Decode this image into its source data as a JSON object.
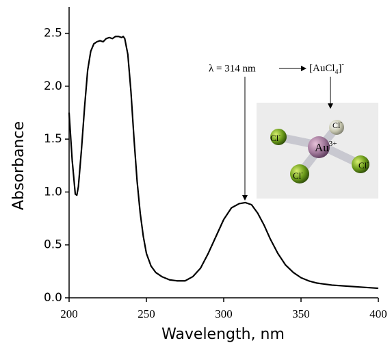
{
  "chart_data": {
    "type": "line",
    "xlabel": "Wavelength, nm",
    "ylabel": "Absorbance",
    "x": [
      200,
      202,
      204,
      205,
      206,
      208,
      210,
      212,
      214,
      216,
      218,
      220,
      222,
      224,
      226,
      228,
      230,
      232,
      234,
      235,
      236,
      238,
      240,
      242,
      244,
      246,
      248,
      250,
      253,
      256,
      260,
      265,
      270,
      275,
      280,
      285,
      290,
      295,
      300,
      305,
      310,
      314,
      318,
      322,
      326,
      330,
      335,
      340,
      345,
      350,
      355,
      360,
      370,
      380,
      390,
      400
    ],
    "values": [
      1.75,
      1.3,
      0.98,
      0.97,
      1.05,
      1.4,
      1.8,
      2.15,
      2.33,
      2.4,
      2.42,
      2.43,
      2.42,
      2.45,
      2.46,
      2.45,
      2.47,
      2.47,
      2.46,
      2.47,
      2.45,
      2.3,
      1.95,
      1.5,
      1.1,
      0.8,
      0.58,
      0.42,
      0.3,
      0.24,
      0.2,
      0.17,
      0.16,
      0.16,
      0.2,
      0.28,
      0.42,
      0.58,
      0.74,
      0.85,
      0.89,
      0.9,
      0.88,
      0.8,
      0.69,
      0.56,
      0.42,
      0.31,
      0.24,
      0.19,
      0.16,
      0.14,
      0.12,
      0.11,
      0.1,
      0.09
    ],
    "color": "#000000",
    "xlim": [
      200,
      400
    ],
    "xticks": [
      200,
      250,
      300,
      350,
      400
    ],
    "ylim": [
      0,
      2.75
    ],
    "yticks": [
      {
        "value": 0,
        "label": "0.0"
      },
      0.5,
      {
        "value": 1,
        "label": "1.0"
      },
      1.5,
      {
        "value": 2,
        "label": "2.0"
      },
      2.5
    ],
    "annotation": {
      "label": "λ = 314 nm",
      "species": [
        "[AuCl",
        "4",
        "]",
        "-"
      ]
    },
    "atoms": [
      [
        "Cl",
        "-"
      ],
      [
        "Cl",
        "-"
      ],
      [
        "Cl",
        "-"
      ],
      [
        "Cl",
        "-"
      ],
      [
        "Au",
        "3+"
      ]
    ]
  }
}
